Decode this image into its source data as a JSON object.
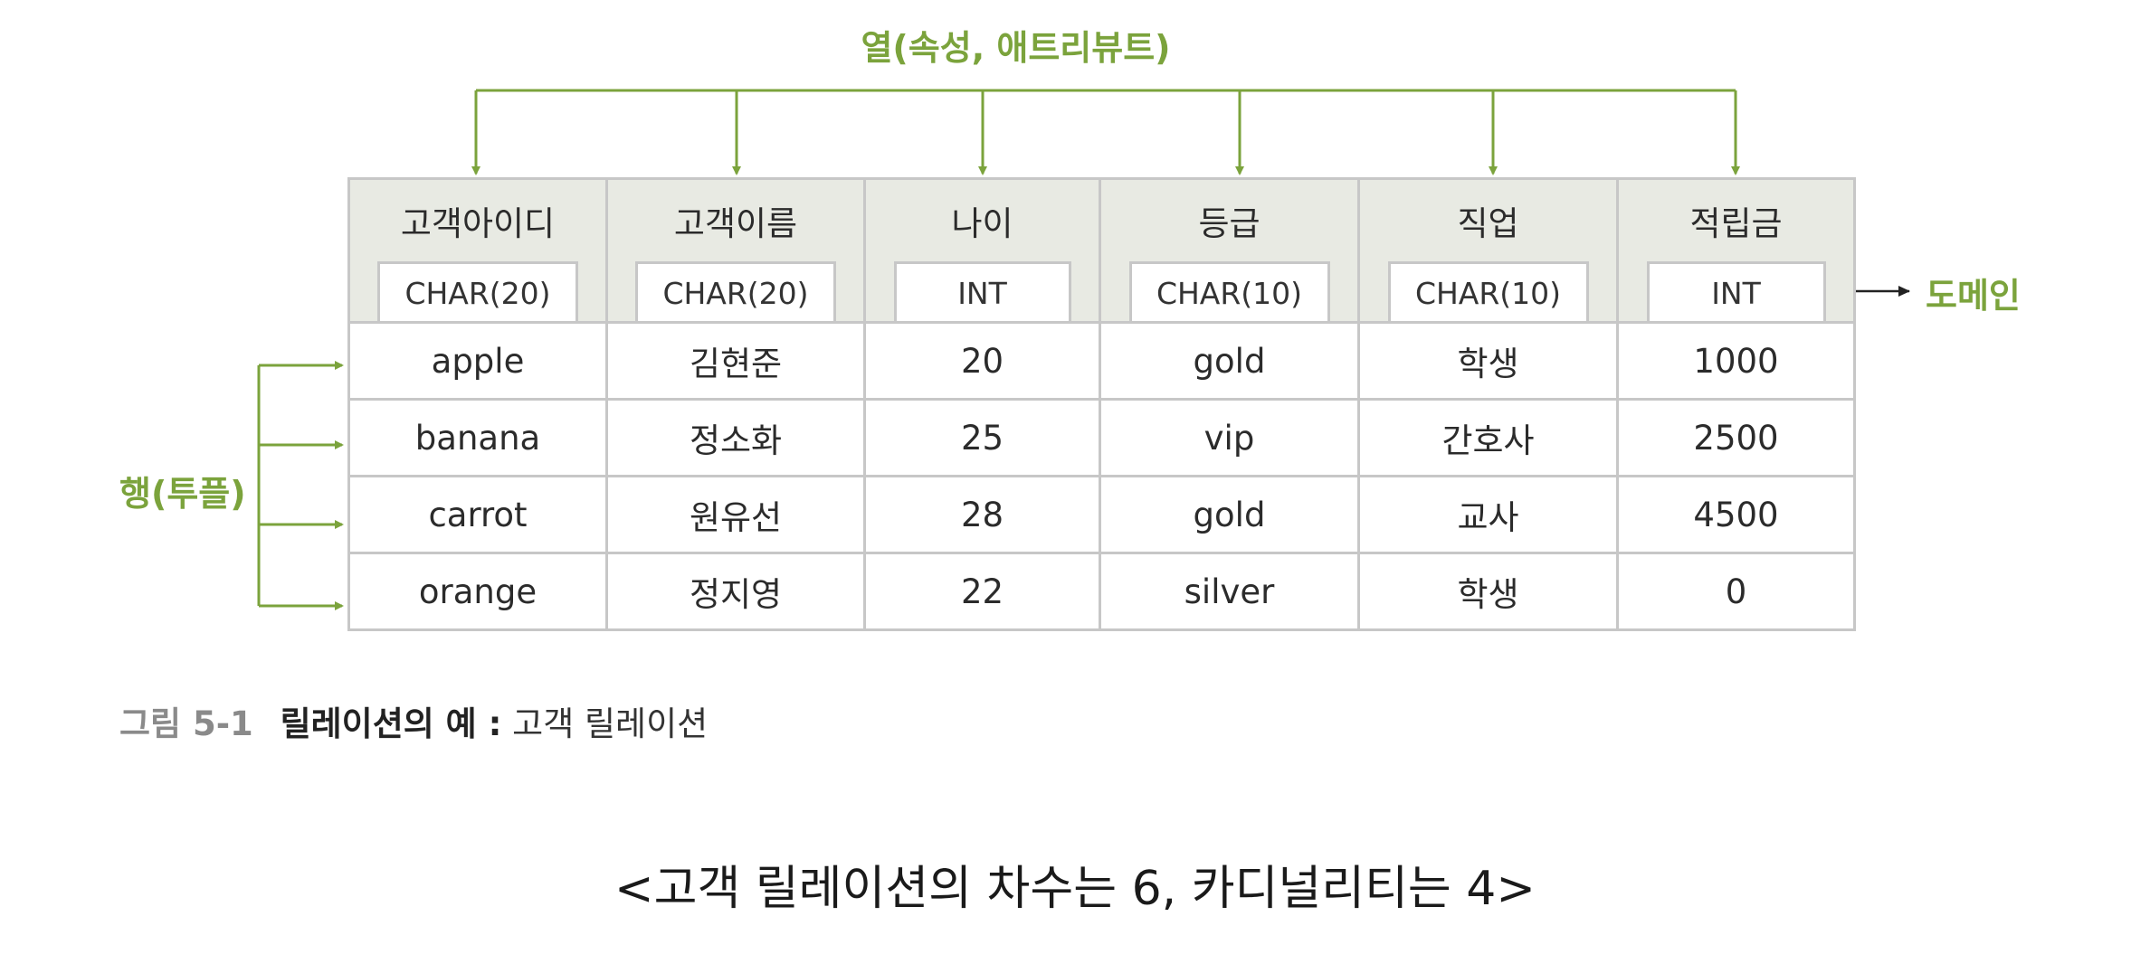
{
  "labels": {
    "columns": "열(속성, 애트리뷰트)",
    "rows": "행(투플)",
    "domain": "도메인"
  },
  "table": {
    "headers": [
      {
        "name": "고객아이디",
        "type": "CHAR(20)"
      },
      {
        "name": "고객이름",
        "type": "CHAR(20)"
      },
      {
        "name": "나이",
        "type": "INT"
      },
      {
        "name": "등급",
        "type": "CHAR(10)"
      },
      {
        "name": "직업",
        "type": "CHAR(10)"
      },
      {
        "name": "적립금",
        "type": "INT"
      }
    ],
    "rows": [
      [
        "apple",
        "김현준",
        "20",
        "gold",
        "학생",
        "1000"
      ],
      [
        "banana",
        "정소화",
        "25",
        "vip",
        "간호사",
        "2500"
      ],
      [
        "carrot",
        "원유선",
        "28",
        "gold",
        "교사",
        "4500"
      ],
      [
        "orange",
        "정지영",
        "22",
        "silver",
        "학생",
        "0"
      ]
    ]
  },
  "caption": {
    "number": "그림 5-1",
    "title": "릴레이션의 예 :",
    "subtitle": "고객 릴레이션"
  },
  "summary": "<고객 릴레이션의 차수는 6, 카디널리티는 4>",
  "colors": {
    "accent_green": "#7ba33c",
    "header_bg": "#e8eae3",
    "border": "#c7c7c7"
  }
}
